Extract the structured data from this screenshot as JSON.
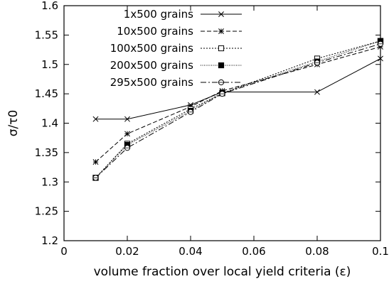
{
  "chart_data": {
    "type": "line",
    "title": "",
    "xlabel": "volume fraction over local yield criteria (ε)",
    "ylabel": "σ/τ0",
    "xlim": [
      0,
      0.1
    ],
    "ylim": [
      1.2,
      1.6
    ],
    "x_ticks": [
      "0",
      "0.02",
      "0.04",
      "0.06",
      "0.08",
      "0.1"
    ],
    "y_ticks": [
      "1.2",
      "1.25",
      "1.3",
      "1.35",
      "1.4",
      "1.45",
      "1.5",
      "1.55",
      "1.6"
    ],
    "grid": false,
    "legend_position": "top-left",
    "x": [
      0.01,
      0.02,
      0.04,
      0.05,
      0.08,
      0.1
    ],
    "series": [
      {
        "name": "1x500 grains",
        "marker": "x",
        "dash": "solid",
        "values": [
          1.407,
          1.407,
          1.431,
          1.453,
          1.453,
          1.51
        ]
      },
      {
        "name": "10x500 grains",
        "marker": "asterisk",
        "dash": "dashed",
        "values": [
          1.334,
          1.382,
          1.428,
          1.455,
          1.5,
          1.53
        ]
      },
      {
        "name": "100x500 grains",
        "marker": "open-square",
        "dash": "dotted",
        "values": [
          1.307,
          1.365,
          1.424,
          1.451,
          1.51,
          1.54
        ]
      },
      {
        "name": "200x500 grains",
        "marker": "filled-square",
        "dash": "fine-dotted",
        "values": [
          1.307,
          1.363,
          1.421,
          1.451,
          1.505,
          1.54
        ]
      },
      {
        "name": "295x500 grains",
        "marker": "open-circle",
        "dash": "dash-dot",
        "values": [
          1.307,
          1.358,
          1.419,
          1.45,
          1.503,
          1.535
        ]
      }
    ]
  }
}
